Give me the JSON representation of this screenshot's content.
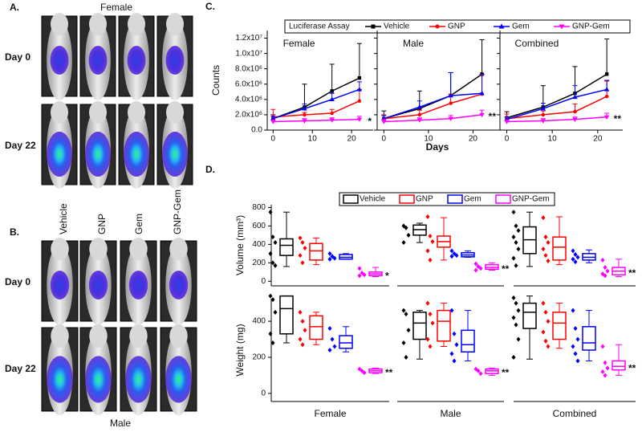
{
  "panel_a": {
    "label": "A.",
    "title": "Female",
    "rows": [
      "Day 0",
      "Day 22"
    ]
  },
  "panel_b": {
    "label": "B.",
    "columns": [
      "Vehicle",
      "GNP",
      "Gem",
      "GNP-Gem"
    ],
    "rows": [
      "Day 0",
      "Day 22"
    ],
    "caption": "Male"
  },
  "chart_data": [
    {
      "type": "line",
      "panel_label": "C.",
      "legend_title": "Luciferase Assay",
      "x_label": "Days",
      "y_label": "Counts",
      "legend": [
        {
          "name": "Vehicle",
          "color": "#000000"
        },
        {
          "name": "GNP",
          "color": "#ff0000"
        },
        {
          "name": "Gem",
          "color": "#0000ff"
        },
        {
          "name": "GNP-Gem",
          "color": "#ff00ff"
        }
      ],
      "x": [
        0,
        8,
        15,
        22
      ],
      "xlim": [
        -1.5,
        25.5
      ],
      "xticks": [
        0,
        10,
        20
      ],
      "ylim": [
        0,
        13000000
      ],
      "yticks": [
        {
          "value": 0,
          "label": "0.0"
        },
        {
          "value": 2000000,
          "label": "2.0x10⁶"
        },
        {
          "value": 4000000,
          "label": "4.0x10⁶"
        },
        {
          "value": 6000000,
          "label": "6.0x10⁶"
        },
        {
          "value": 8000000,
          "label": "8.0x10⁶"
        },
        {
          "value": 10000000,
          "label": "1.0x10⁷"
        },
        {
          "value": 12000000,
          "label": "1.2x10⁷"
        }
      ],
      "subplots": [
        {
          "title": "Female",
          "annotation": "*",
          "series": [
            {
              "values": [
                1500000,
                3000000,
                5100000,
                6800000
              ],
              "errors": [
                500000,
                3000000,
                3500000,
                4500000
              ]
            },
            {
              "values": [
                1700000,
                2000000,
                2200000,
                3800000
              ],
              "errors": [
                1000000,
                300000,
                500000,
                1500000
              ]
            },
            {
              "values": [
                1500000,
                2800000,
                4000000,
                5300000
              ],
              "errors": [
                300000,
                600000,
                800000,
                1000000
              ]
            },
            {
              "values": [
                1100000,
                1200000,
                1300000,
                1400000
              ],
              "errors": [
                200000,
                300000,
                300000,
                400000
              ]
            }
          ]
        },
        {
          "title": "Male",
          "annotation": "**",
          "series": [
            {
              "values": [
                1500000,
                2800000,
                4500000,
                7300000
              ],
              "errors": [
                1000000,
                2300000,
                3000000,
                4500000
              ]
            },
            {
              "values": [
                1500000,
                2000000,
                3500000,
                4700000
              ],
              "errors": [
                500000,
                600000,
                1200000,
                2500000
              ]
            },
            {
              "values": [
                1500000,
                3000000,
                4500000,
                4800000
              ],
              "errors": [
                400000,
                800000,
                3000000,
                2500000
              ]
            },
            {
              "values": [
                1100000,
                1300000,
                1500000,
                2000000
              ],
              "errors": [
                300000,
                300000,
                400000,
                600000
              ]
            }
          ]
        },
        {
          "title": "Combined",
          "annotation": "**",
          "series": [
            {
              "values": [
                1600000,
                3000000,
                4800000,
                7300000
              ],
              "errors": [
                800000,
                2800000,
                3500000,
                4600000
              ]
            },
            {
              "values": [
                1500000,
                2000000,
                2400000,
                4400000
              ],
              "errors": [
                600000,
                500000,
                1000000,
                2000000
              ]
            },
            {
              "values": [
                1400000,
                2800000,
                4300000,
                5300000
              ],
              "errors": [
                300000,
                700000,
                1500000,
                1200000
              ]
            },
            {
              "values": [
                1100000,
                1200000,
                1400000,
                1700000
              ],
              "errors": [
                200000,
                300000,
                300000,
                500000
              ]
            }
          ]
        }
      ]
    },
    {
      "type": "box",
      "panel_label": "D.",
      "legend": [
        {
          "name": "Vehicle",
          "color": "#000000"
        },
        {
          "name": "GNP",
          "color": "#ff0000"
        },
        {
          "name": "Gem",
          "color": "#0000ff"
        },
        {
          "name": "GNP-Gem",
          "color": "#ff00ff"
        }
      ],
      "categories": [
        "Female",
        "Male",
        "Combined"
      ],
      "subplots": [
        {
          "y_label": "Volume (mm³)",
          "ylim": [
            -50,
            830
          ],
          "yticks": [
            0,
            200,
            400,
            600,
            800
          ],
          "annotations": [
            "*",
            "**",
            "**"
          ],
          "series": [
            {
              "boxes": [
                {
                  "min": 160,
                  "q1": 280,
                  "median": 390,
                  "q3": 460,
                  "max": 750,
                  "points": [
                    750,
                    480,
                    420,
                    300,
                    200,
                    170
                  ]
                },
                {
                  "min": 420,
                  "q1": 500,
                  "median": 560,
                  "q3": 610,
                  "max": 630,
                  "points": [
                    600,
                    580,
                    500,
                    420
                  ]
                },
                {
                  "min": 160,
                  "q1": 300,
                  "median": 450,
                  "q3": 590,
                  "max": 750,
                  "points": [
                    750,
                    600,
                    550,
                    480,
                    420,
                    350,
                    250,
                    170
                  ]
                }
              ]
            },
            {
              "boxes": [
                {
                  "min": 180,
                  "q1": 230,
                  "median": 330,
                  "q3": 410,
                  "max": 470,
                  "points": [
                    470,
                    420,
                    360,
                    280,
                    200
                  ]
                },
                {
                  "min": 230,
                  "q1": 370,
                  "median": 430,
                  "q3": 490,
                  "max": 690,
                  "points": [
                    700,
                    490,
                    430,
                    330,
                    230
                  ]
                },
                {
                  "min": 180,
                  "q1": 230,
                  "median": 370,
                  "q3": 480,
                  "max": 700,
                  "points": [
                    690,
                    480,
                    420,
                    350,
                    280,
                    220
                  ]
                }
              ]
            },
            {
              "boxes": [
                {
                  "min": 240,
                  "q1": 240,
                  "median": 260,
                  "q3": 290,
                  "max": 300,
                  "points": [
                    300,
                    270,
                    250,
                    240
                  ]
                },
                {
                  "min": 260,
                  "q1": 265,
                  "median": 285,
                  "q3": 310,
                  "max": 330,
                  "points": [
                    330,
                    300,
                    280,
                    270
                  ]
                },
                {
                  "min": 200,
                  "q1": 230,
                  "median": 260,
                  "q3": 300,
                  "max": 340,
                  "points": [
                    330,
                    290,
                    260,
                    240,
                    210
                  ]
                }
              ]
            },
            {
              "boxes": [
                {
                  "min": 50,
                  "q1": 60,
                  "median": 80,
                  "q3": 100,
                  "max": 150,
                  "points": [
                    140,
                    90,
                    70,
                    60
                  ]
                },
                {
                  "min": 120,
                  "q1": 130,
                  "median": 150,
                  "q3": 180,
                  "max": 200,
                  "points": [
                    190,
                    160,
                    140,
                    120
                  ]
                },
                {
                  "min": 50,
                  "q1": 70,
                  "median": 110,
                  "q3": 150,
                  "max": 240,
                  "points": [
                    230,
                    150,
                    110,
                    80,
                    60
                  ]
                }
              ]
            }
          ]
        },
        {
          "y_label": "Weight (mg)",
          "ylim": [
            -45,
            525
          ],
          "yticks": [
            0,
            200,
            400
          ],
          "annotations": [
            "**",
            "**",
            "**"
          ],
          "series": [
            {
              "boxes": [
                {
                  "min": 280,
                  "q1": 330,
                  "median": 470,
                  "q3": 540,
                  "max": 540,
                  "points": [
                    540,
                    520,
                    450,
                    330,
                    280
                  ]
                },
                {
                  "min": 190,
                  "q1": 300,
                  "median": 390,
                  "q3": 450,
                  "max": 460,
                  "points": [
                    460,
                    440,
                    350,
                    280,
                    200
                  ]
                },
                {
                  "min": 190,
                  "q1": 360,
                  "median": 450,
                  "q3": 500,
                  "max": 540,
                  "points": [
                    530,
                    500,
                    460,
                    420,
                    380,
                    300,
                    200
                  ]
                }
              ]
            },
            {
              "boxes": [
                {
                  "min": 270,
                  "q1": 300,
                  "median": 370,
                  "q3": 430,
                  "max": 450,
                  "points": [
                    450,
                    400,
                    350,
                    300,
                    270
                  ]
                },
                {
                  "min": 260,
                  "q1": 290,
                  "median": 400,
                  "q3": 460,
                  "max": 500,
                  "points": [
                    500,
                    440,
                    390,
                    300,
                    260
                  ]
                },
                {
                  "min": 250,
                  "q1": 300,
                  "median": 390,
                  "q3": 450,
                  "max": 500,
                  "points": [
                    500,
                    450,
                    400,
                    340,
                    290,
                    260
                  ]
                }
              ]
            },
            {
              "boxes": [
                {
                  "min": 230,
                  "q1": 250,
                  "median": 280,
                  "q3": 320,
                  "max": 370,
                  "points": [
                    360,
                    300,
                    260,
                    240
                  ]
                },
                {
                  "min": 180,
                  "q1": 230,
                  "median": 270,
                  "q3": 350,
                  "max": 460,
                  "points": [
                    460,
                    330,
                    270,
                    220,
                    180
                  ]
                },
                {
                  "min": 180,
                  "q1": 240,
                  "median": 280,
                  "q3": 370,
                  "max": 460,
                  "points": [
                    460,
                    360,
                    300,
                    260,
                    220,
                    180
                  ]
                }
              ]
            },
            {
              "boxes": [
                {
                  "min": 110,
                  "q1": 115,
                  "median": 125,
                  "q3": 135,
                  "max": 140,
                  "points": [
                    135,
                    125,
                    115
                  ]
                },
                {
                  "min": 100,
                  "q1": 110,
                  "median": 125,
                  "q3": 135,
                  "max": 140,
                  "points": [
                    135,
                    125,
                    110
                  ]
                },
                {
                  "min": 100,
                  "q1": 130,
                  "median": 150,
                  "q3": 180,
                  "max": 270,
                  "points": [
                    260,
                    170,
                    140,
                    120,
                    100
                  ]
                }
              ]
            }
          ]
        }
      ]
    }
  ]
}
